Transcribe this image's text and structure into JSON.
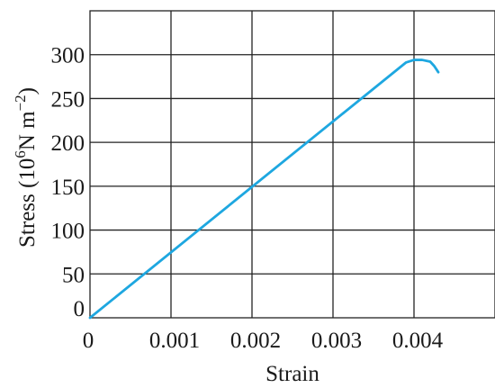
{
  "chart_data": {
    "type": "line",
    "title": "",
    "xlabel": "Strain",
    "ylabel_main": "Stress (10",
    "ylabel_exp1": "6",
    "ylabel_unit": "N m",
    "ylabel_exp2": "−2",
    "ylabel_close": ")",
    "xlim": [
      0,
      0.005
    ],
    "ylim": [
      0,
      350
    ],
    "x_ticks": [
      {
        "value": 0,
        "label": "0"
      },
      {
        "value": 0.001,
        "label": "0.001"
      },
      {
        "value": 0.002,
        "label": "0.002"
      },
      {
        "value": 0.003,
        "label": "0.003"
      },
      {
        "value": 0.004,
        "label": "0.004"
      }
    ],
    "y_ticks": [
      {
        "value": 0,
        "label": "0"
      },
      {
        "value": 50,
        "label": "50"
      },
      {
        "value": 100,
        "label": "100"
      },
      {
        "value": 150,
        "label": "150"
      },
      {
        "value": 200,
        "label": "200"
      },
      {
        "value": 250,
        "label": "250"
      },
      {
        "value": 300,
        "label": "300"
      }
    ],
    "grid": true,
    "series": [
      {
        "color": "#1ea7e0",
        "points": [
          {
            "x": 0,
            "y": 0
          },
          {
            "x": 0.0039,
            "y": 291
          },
          {
            "x": 0.004,
            "y": 294
          },
          {
            "x": 0.0041,
            "y": 294
          },
          {
            "x": 0.0042,
            "y": 292
          },
          {
            "x": 0.00425,
            "y": 287
          },
          {
            "x": 0.0043,
            "y": 280
          }
        ]
      }
    ]
  }
}
